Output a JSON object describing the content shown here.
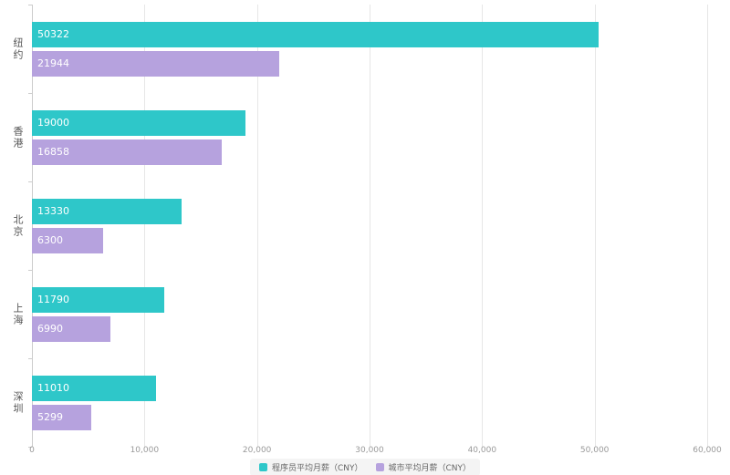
{
  "chart_data": {
    "type": "bar",
    "orientation": "horizontal",
    "title": "",
    "categories": [
      "纽约",
      "香港",
      "北京",
      "上海",
      "深圳"
    ],
    "series": [
      {
        "name": "程序员平均月薪（CNY）",
        "color": "#2ec7c9",
        "values": [
          50322,
          19000,
          13330,
          11790,
          11010
        ]
      },
      {
        "name": "城市平均月薪（CNY）",
        "color": "#b6a2de",
        "values": [
          21944,
          16858,
          6300,
          6990,
          5299
        ]
      }
    ],
    "xlim": [
      0,
      60000
    ],
    "x_ticks": [
      0,
      10000,
      20000,
      30000,
      40000,
      50000,
      60000
    ],
    "x_tick_labels": [
      "0",
      "10,000",
      "20,000",
      "30,000",
      "40,000",
      "50,000",
      "60,000"
    ],
    "grid": true,
    "data_labels": "inside-left",
    "legend_position": "bottom"
  },
  "colors": {
    "series1": "#2ec7c9",
    "series2": "#b6a2de",
    "grid": "#e6e6e6",
    "axis": "#cccccc",
    "tick_text": "#999999",
    "category_text": "#555555",
    "value_text": "#ffffff",
    "legend_text": "#666666",
    "background": "#ffffff"
  }
}
